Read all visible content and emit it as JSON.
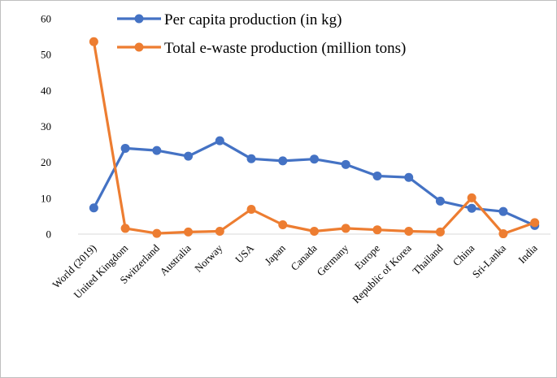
{
  "chart_data": {
    "type": "line",
    "title": "",
    "xlabel": "",
    "ylabel": "",
    "ylim": [
      0,
      60
    ],
    "yticks": [
      0,
      10,
      20,
      30,
      40,
      50,
      60
    ],
    "grid": false,
    "legend_position": "top-center",
    "categories": [
      "World (2019)",
      "United Kingdom",
      "Switzerland",
      "Australia",
      "Norway",
      "USA",
      "Japan",
      "Canada",
      "Germany",
      "Europe",
      "Republic of Korea",
      "Thailand",
      "China",
      "Sri-Lanka",
      "India"
    ],
    "series": [
      {
        "name": "Per capita production (in kg)",
        "color": "#4472c4",
        "values": [
          7.3,
          23.9,
          23.3,
          21.7,
          26.0,
          21.0,
          20.4,
          20.9,
          19.4,
          16.2,
          15.8,
          9.2,
          7.2,
          6.3,
          2.4
        ]
      },
      {
        "name": "Total e-waste production (million tons)",
        "color": "#ed7d31",
        "values": [
          53.6,
          1.6,
          0.2,
          0.6,
          0.8,
          6.9,
          2.6,
          0.8,
          1.6,
          1.2,
          0.8,
          0.6,
          10.1,
          0.1,
          3.2
        ]
      }
    ]
  }
}
